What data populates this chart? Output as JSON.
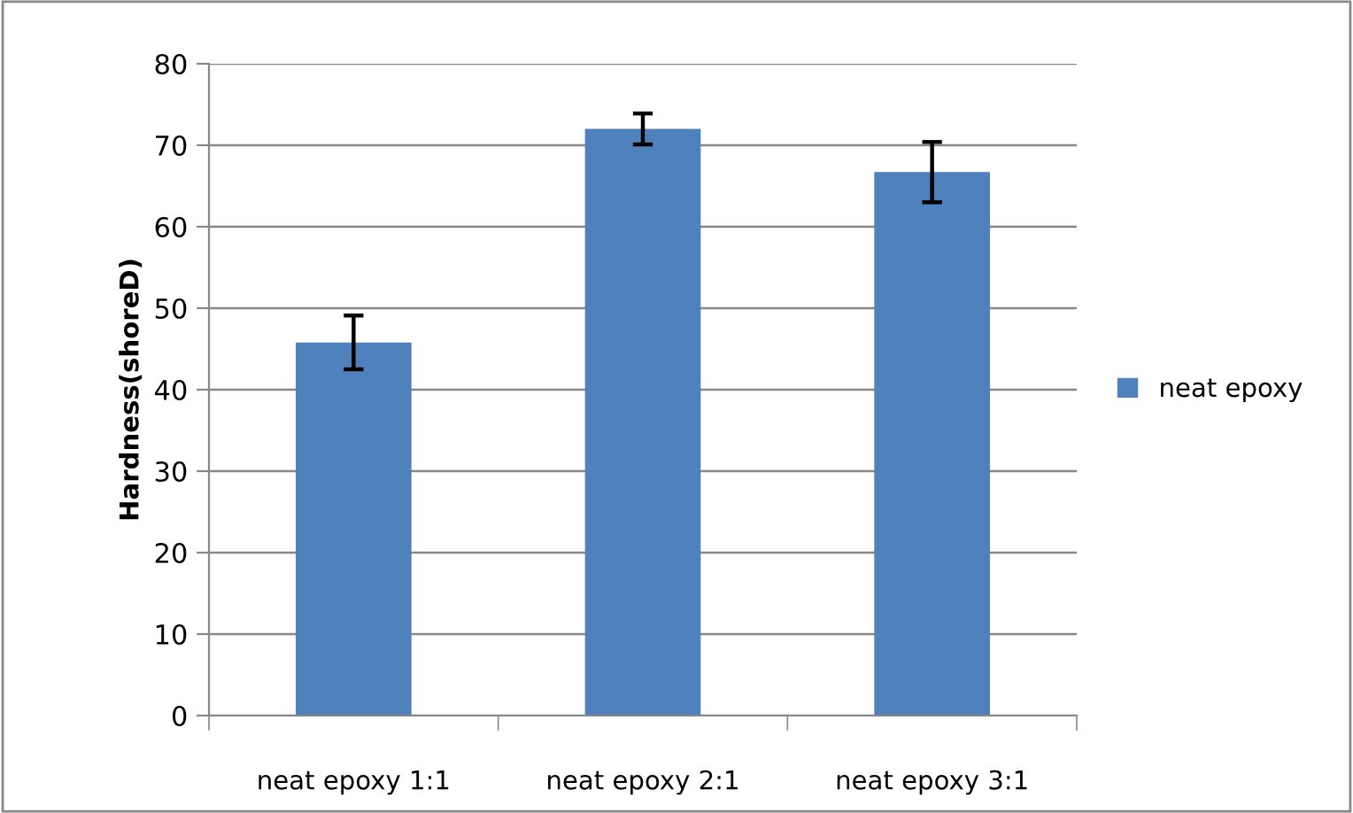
{
  "chart_data": {
    "type": "bar",
    "ylabel": "Hardness(shoreD)",
    "categories": [
      "neat epoxy 1:1",
      "neat epoxy 2:1",
      "neat epoxy 3:1"
    ],
    "series": [
      {
        "name": "neat epoxy",
        "color": "#4f81bd",
        "values": [
          45.8,
          72.0,
          66.7
        ],
        "errors": [
          3.3,
          1.9,
          3.7
        ]
      }
    ],
    "ylim": [
      0,
      80
    ],
    "yticks": [
      0,
      10,
      20,
      30,
      40,
      50,
      60,
      70,
      80
    ],
    "grid": "y",
    "legend": "right"
  }
}
